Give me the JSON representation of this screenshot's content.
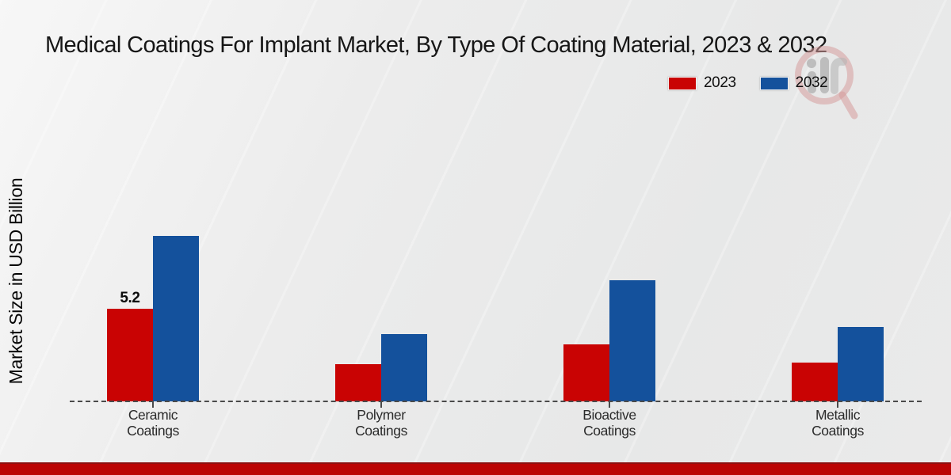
{
  "header": {
    "title": "Medical Coatings For Implant Market, By Type Of Coating Material, 2023 & 2032"
  },
  "legend": {
    "items": [
      {
        "label": "2023",
        "color": "#c90303"
      },
      {
        "label": "2032",
        "color": "#14519c"
      }
    ]
  },
  "chart_data": {
    "type": "bar",
    "title": "Medical Coatings For Implant Market, By Type Of Coating Material, 2023 & 2032",
    "categories": [
      "Ceramic Coatings",
      "Polymer Coatings",
      "Bioactive Coatings",
      "Metallic Coatings"
    ],
    "series": [
      {
        "name": "2023",
        "color": "#c90303",
        "values": [
          5.2,
          2.1,
          3.2,
          2.2
        ]
      },
      {
        "name": "2032",
        "color": "#14519c",
        "values": [
          9.3,
          3.8,
          6.8,
          4.2
        ]
      }
    ],
    "xlabel": "",
    "ylabel": "Market Size in USD Billion",
    "ylim": [
      0,
      10
    ],
    "grid": false,
    "y_axis_ticks_visible": false,
    "legend_position": "top-right",
    "baseline_style": "dashed",
    "visible_value_labels": [
      {
        "series": "2023",
        "category": "Ceramic Coatings",
        "label": "5.2"
      }
    ]
  },
  "watermark": {
    "icon": "magnifier-bar-chart-watermark"
  },
  "footer": {
    "strip_color": "#bb0404"
  },
  "colors": {
    "background": "#ececec",
    "baseline": "#4a4a4a",
    "title_text": "#161616"
  }
}
